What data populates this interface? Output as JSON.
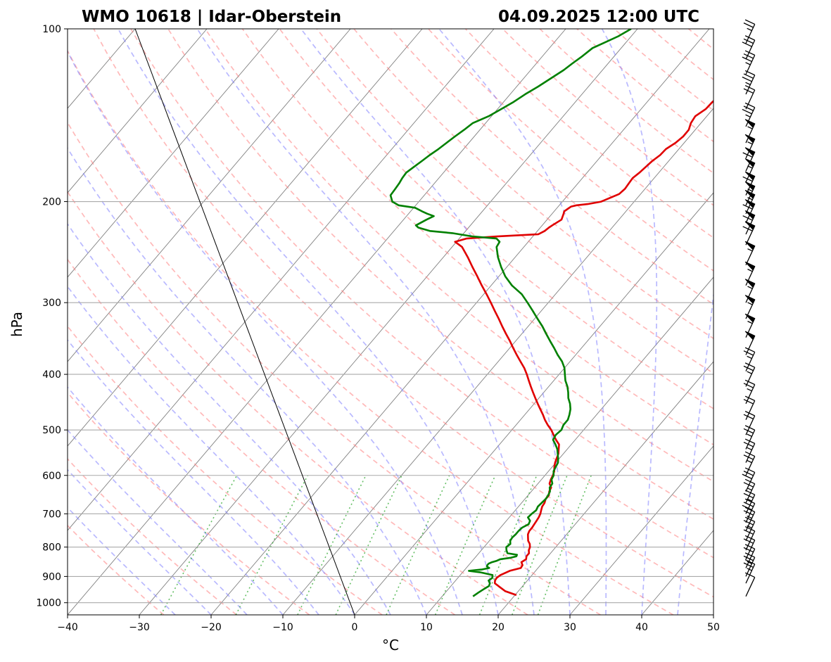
{
  "title": {
    "left": "WMO 10618 | Idar-Oberstein",
    "right": "04.09.2025 12:00 UTC"
  },
  "colors": {
    "temperature": "#e00000",
    "dewpoint": "#008000",
    "dry_adiabat": "#ff8080",
    "moist_adiabat": "#8080ff",
    "mixing_ratio": "#33aa33",
    "isotherm": "#555555",
    "isobar": "#aaaaaa"
  },
  "chart_data": {
    "type": "skew-t log-p sounding",
    "xlabel": "°C",
    "ylabel": "hPa",
    "xlim": [
      -40,
      50
    ],
    "ylim": [
      1050,
      100
    ],
    "y_scale": "log",
    "grid": true,
    "x_ticks": [
      "−40",
      "−30",
      "−20",
      "−10",
      "0",
      "10",
      "20",
      "30",
      "40",
      "50"
    ],
    "y_ticks": [
      "100",
      "200",
      "300",
      "400",
      "500",
      "600",
      "700",
      "800",
      "900",
      "1000"
    ],
    "series": [
      {
        "key": "temperature",
        "points": [
          [
            970,
            20.2
          ],
          [
            955,
            18.2
          ],
          [
            940,
            17.0
          ],
          [
            925,
            15.8
          ],
          [
            915,
            15.5
          ],
          [
            905,
            15.4
          ],
          [
            895,
            15.6
          ],
          [
            880,
            16.4
          ],
          [
            870,
            17.6
          ],
          [
            860,
            17.5
          ],
          [
            850,
            17.0
          ],
          [
            840,
            17.3
          ],
          [
            830,
            17.0
          ],
          [
            820,
            17.0
          ],
          [
            810,
            16.6
          ],
          [
            800,
            16.4
          ],
          [
            790,
            16.0
          ],
          [
            780,
            15.4
          ],
          [
            770,
            15.0
          ],
          [
            760,
            14.6
          ],
          [
            750,
            14.4
          ],
          [
            740,
            14.4
          ],
          [
            730,
            14.3
          ],
          [
            720,
            14.2
          ],
          [
            710,
            14.1
          ],
          [
            700,
            13.9
          ],
          [
            690,
            13.6
          ],
          [
            680,
            13.3
          ],
          [
            670,
            13.2
          ],
          [
            660,
            12.9
          ],
          [
            650,
            12.9
          ],
          [
            640,
            12.5
          ],
          [
            630,
            12.3
          ],
          [
            620,
            11.6
          ],
          [
            610,
            11.3
          ],
          [
            600,
            11.1
          ],
          [
            590,
            10.8
          ],
          [
            580,
            10.3
          ],
          [
            570,
            9.9
          ],
          [
            560,
            9.6
          ],
          [
            550,
            9.3
          ],
          [
            540,
            8.8
          ],
          [
            530,
            8.3
          ],
          [
            520,
            7.3
          ],
          [
            510,
            6.4
          ],
          [
            500,
            5.5
          ],
          [
            490,
            4.4
          ],
          [
            480,
            3.4
          ],
          [
            470,
            2.5
          ],
          [
            460,
            1.5
          ],
          [
            450,
            0.5
          ],
          [
            440,
            -0.5
          ],
          [
            430,
            -1.5
          ],
          [
            420,
            -2.5
          ],
          [
            410,
            -3.5
          ],
          [
            400,
            -4.5
          ],
          [
            390,
            -5.6
          ],
          [
            380,
            -6.9
          ],
          [
            370,
            -8.2
          ],
          [
            360,
            -9.5
          ],
          [
            350,
            -10.8
          ],
          [
            340,
            -12.2
          ],
          [
            330,
            -13.6
          ],
          [
            320,
            -15.0
          ],
          [
            310,
            -16.5
          ],
          [
            300,
            -18.0
          ],
          [
            290,
            -19.6
          ],
          [
            280,
            -21.3
          ],
          [
            270,
            -23.0
          ],
          [
            260,
            -24.8
          ],
          [
            250,
            -26.6
          ],
          [
            240,
            -28.6
          ],
          [
            235,
            -30.2
          ],
          [
            232,
            -29.0
          ],
          [
            230,
            -25.0
          ],
          [
            228,
            -19.5
          ],
          [
            225,
            -19.0
          ],
          [
            222,
            -18.8
          ],
          [
            220,
            -18.6
          ],
          [
            215,
            -18.0
          ],
          [
            210,
            -18.4
          ],
          [
            208,
            -18.6
          ],
          [
            206,
            -18.4
          ],
          [
            204,
            -18.2
          ],
          [
            203,
            -17.6
          ],
          [
            202,
            -16.2
          ],
          [
            200,
            -14.6
          ],
          [
            197,
            -13.8
          ],
          [
            194,
            -13.0
          ],
          [
            190,
            -12.8
          ],
          [
            186,
            -12.9
          ],
          [
            182,
            -13.0
          ],
          [
            178,
            -12.7
          ],
          [
            174,
            -12.5
          ],
          [
            170,
            -12.3
          ],
          [
            166,
            -11.9
          ],
          [
            162,
            -11.8
          ],
          [
            158,
            -11.2
          ],
          [
            154,
            -10.9
          ],
          [
            150,
            -10.9
          ],
          [
            146,
            -11.4
          ],
          [
            142,
            -11.6
          ],
          [
            138,
            -11.0
          ],
          [
            134,
            -10.9
          ],
          [
            130,
            -10.4
          ],
          [
            126,
            -10.3
          ],
          [
            122,
            -10.9
          ],
          [
            119,
            -10.8
          ],
          [
            116,
            -10.3
          ],
          [
            113,
            -9.6
          ],
          [
            110,
            -9.5
          ],
          [
            107,
            -8.9
          ],
          [
            104,
            -7.0
          ],
          [
            102,
            -6.0
          ],
          [
            100,
            -5.5
          ]
        ]
      },
      {
        "key": "dewpoint",
        "points": [
          [
            975,
            14.3
          ],
          [
            960,
            14.6
          ],
          [
            945,
            15.0
          ],
          [
            935,
            15.3
          ],
          [
            925,
            15.1
          ],
          [
            915,
            14.6
          ],
          [
            905,
            14.8
          ],
          [
            895,
            14.5
          ],
          [
            885,
            12.4
          ],
          [
            880,
            10.7
          ],
          [
            875,
            12.4
          ],
          [
            870,
            13.2
          ],
          [
            865,
            12.7
          ],
          [
            860,
            12.6
          ],
          [
            855,
            12.6
          ],
          [
            850,
            12.9
          ],
          [
            845,
            13.4
          ],
          [
            840,
            13.7
          ],
          [
            835,
            15.0
          ],
          [
            830,
            15.6
          ],
          [
            825,
            15.5
          ],
          [
            820,
            14.0
          ],
          [
            810,
            13.5
          ],
          [
            800,
            13.1
          ],
          [
            790,
            13.3
          ],
          [
            780,
            12.9
          ],
          [
            770,
            12.8
          ],
          [
            760,
            12.9
          ],
          [
            750,
            12.9
          ],
          [
            740,
            13.0
          ],
          [
            730,
            13.5
          ],
          [
            720,
            13.3
          ],
          [
            710,
            12.6
          ],
          [
            700,
            12.7
          ],
          [
            690,
            12.9
          ],
          [
            680,
            12.7
          ],
          [
            670,
            12.8
          ],
          [
            660,
            12.9
          ],
          [
            650,
            12.8
          ],
          [
            640,
            12.6
          ],
          [
            630,
            12.1
          ],
          [
            620,
            12.0
          ],
          [
            610,
            11.4
          ],
          [
            600,
            11.2
          ],
          [
            590,
            10.7
          ],
          [
            580,
            10.5
          ],
          [
            570,
            10.3
          ],
          [
            560,
            9.8
          ],
          [
            550,
            9.2
          ],
          [
            540,
            8.6
          ],
          [
            530,
            7.8
          ],
          [
            520,
            6.9
          ],
          [
            510,
            6.7
          ],
          [
            500,
            6.9
          ],
          [
            490,
            6.6
          ],
          [
            480,
            6.6
          ],
          [
            470,
            6.2
          ],
          [
            460,
            5.7
          ],
          [
            450,
            5.0
          ],
          [
            440,
            4.1
          ],
          [
            430,
            3.4
          ],
          [
            420,
            2.6
          ],
          [
            410,
            1.6
          ],
          [
            400,
            0.8
          ],
          [
            390,
            0.0
          ],
          [
            380,
            -1.1
          ],
          [
            370,
            -2.5
          ],
          [
            360,
            -3.8
          ],
          [
            350,
            -5.2
          ],
          [
            340,
            -6.6
          ],
          [
            330,
            -8.0
          ],
          [
            320,
            -9.6
          ],
          [
            310,
            -11.2
          ],
          [
            300,
            -12.9
          ],
          [
            290,
            -14.7
          ],
          [
            280,
            -17.1
          ],
          [
            270,
            -19.1
          ],
          [
            260,
            -20.8
          ],
          [
            250,
            -22.4
          ],
          [
            240,
            -23.8
          ],
          [
            235,
            -24.0
          ],
          [
            232,
            -24.8
          ],
          [
            230,
            -28.4
          ],
          [
            227,
            -31.6
          ],
          [
            225,
            -35.0
          ],
          [
            222,
            -37.0
          ],
          [
            220,
            -37.6
          ],
          [
            215,
            -36.8
          ],
          [
            212,
            -36.2
          ],
          [
            210,
            -37.4
          ],
          [
            208,
            -38.4
          ],
          [
            205,
            -39.8
          ],
          [
            203,
            -42.4
          ],
          [
            200,
            -43.7
          ],
          [
            195,
            -44.7
          ],
          [
            190,
            -44.8
          ],
          [
            186,
            -44.9
          ],
          [
            182,
            -45.1
          ],
          [
            178,
            -45.2
          ],
          [
            174,
            -44.8
          ],
          [
            170,
            -44.4
          ],
          [
            166,
            -44.0
          ],
          [
            162,
            -43.5
          ],
          [
            158,
            -43.1
          ],
          [
            154,
            -42.7
          ],
          [
            150,
            -42.2
          ],
          [
            146,
            -41.8
          ],
          [
            142,
            -40.4
          ],
          [
            138,
            -39.5
          ],
          [
            134,
            -38.6
          ],
          [
            130,
            -37.9
          ],
          [
            126,
            -37.0
          ],
          [
            122,
            -36.2
          ],
          [
            118,
            -35.4
          ],
          [
            115,
            -35.0
          ],
          [
            112,
            -34.5
          ],
          [
            108,
            -34.0
          ],
          [
            106,
            -33.1
          ],
          [
            103,
            -31.8
          ],
          [
            100,
            -30.9
          ]
        ]
      }
    ],
    "parcel_reference_line": [
      [
        1050,
        0
      ],
      [
        100,
        -100
      ]
    ],
    "wind_barbs": [
      {
        "p": 975,
        "speed_kt": 10
      },
      {
        "p": 925,
        "speed_kt": 25
      },
      {
        "p": 900,
        "speed_kt": 25
      },
      {
        "p": 870,
        "speed_kt": 20
      },
      {
        "p": 840,
        "speed_kt": 20
      },
      {
        "p": 810,
        "speed_kt": 20
      },
      {
        "p": 780,
        "speed_kt": 25
      },
      {
        "p": 750,
        "speed_kt": 25
      },
      {
        "p": 725,
        "speed_kt": 30
      },
      {
        "p": 700,
        "speed_kt": 25
      },
      {
        "p": 670,
        "speed_kt": 25
      },
      {
        "p": 640,
        "speed_kt": 30
      },
      {
        "p": 600,
        "speed_kt": 25
      },
      {
        "p": 570,
        "speed_kt": 25
      },
      {
        "p": 540,
        "speed_kt": 25
      },
      {
        "p": 510,
        "speed_kt": 20
      },
      {
        "p": 480,
        "speed_kt": 20
      },
      {
        "p": 450,
        "speed_kt": 25
      },
      {
        "p": 420,
        "speed_kt": 25
      },
      {
        "p": 395,
        "speed_kt": 25
      },
      {
        "p": 370,
        "speed_kt": 50
      },
      {
        "p": 345,
        "speed_kt": 55
      },
      {
        "p": 320,
        "speed_kt": 55
      },
      {
        "p": 300,
        "speed_kt": 55
      },
      {
        "p": 280,
        "speed_kt": 55
      },
      {
        "p": 258,
        "speed_kt": 55
      },
      {
        "p": 238,
        "speed_kt": 60
      },
      {
        "p": 228,
        "speed_kt": 60
      },
      {
        "p": 218,
        "speed_kt": 60
      },
      {
        "p": 210,
        "speed_kt": 55
      },
      {
        "p": 203,
        "speed_kt": 55
      },
      {
        "p": 195,
        "speed_kt": 60
      },
      {
        "p": 185,
        "speed_kt": 55
      },
      {
        "p": 177,
        "speed_kt": 60
      },
      {
        "p": 168,
        "speed_kt": 55
      },
      {
        "p": 158,
        "speed_kt": 55
      },
      {
        "p": 148,
        "speed_kt": 35
      },
      {
        "p": 138,
        "speed_kt": 20
      },
      {
        "p": 130,
        "speed_kt": 35
      },
      {
        "p": 120,
        "speed_kt": 35
      },
      {
        "p": 113,
        "speed_kt": 30
      },
      {
        "p": 106,
        "speed_kt": 25
      }
    ]
  }
}
